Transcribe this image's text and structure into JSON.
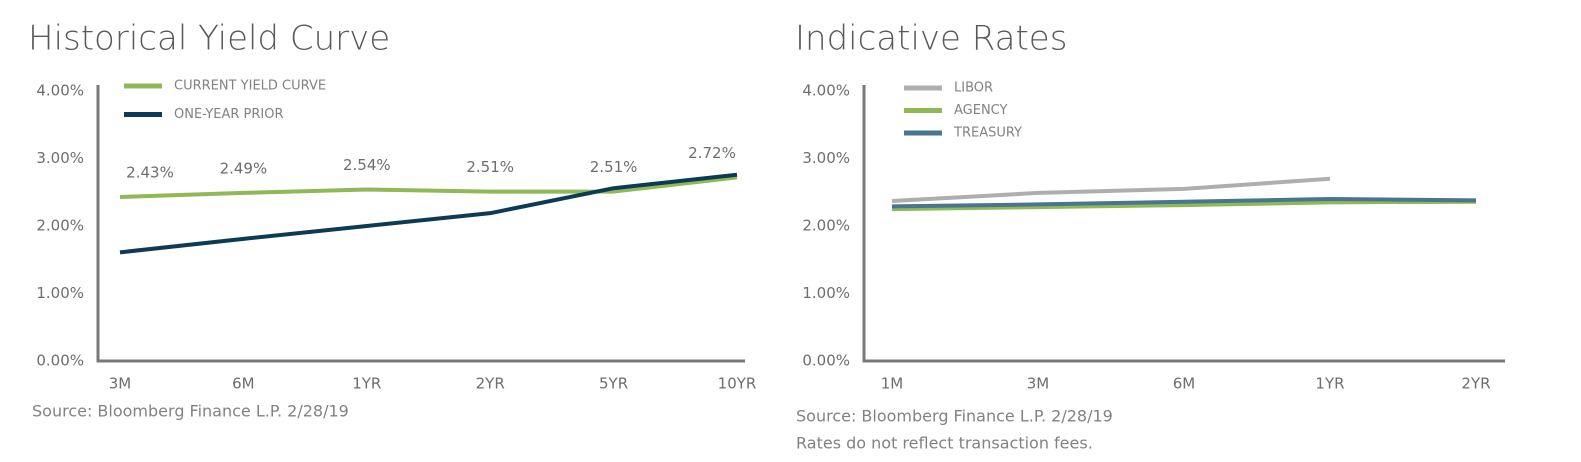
{
  "chart_data": [
    {
      "type": "line",
      "title": "Historical Yield Curve",
      "categories": [
        "3M",
        "6M",
        "1YR",
        "2YR",
        "5YR",
        "10YR"
      ],
      "series": [
        {
          "name": "CURRENT YIELD CURVE",
          "color": "#8fb954",
          "values": [
            2.43,
            2.49,
            2.54,
            2.51,
            2.51,
            2.72
          ],
          "value_labels": [
            "2.43%",
            "2.49%",
            "2.54%",
            "2.51%",
            "2.51%",
            "2.72%"
          ]
        },
        {
          "name": "ONE-YEAR PRIOR",
          "color": "#0d3a55",
          "values": [
            1.61,
            1.81,
            2.0,
            2.19,
            2.56,
            2.76
          ]
        }
      ],
      "ylim": [
        0,
        4
      ],
      "yticks": [
        {
          "value": 0,
          "label": "0.00%"
        },
        {
          "value": 1,
          "label": "1.00%"
        },
        {
          "value": 2,
          "label": "2.00%"
        },
        {
          "value": 3,
          "label": "3.00%"
        },
        {
          "value": 4,
          "label": "4.00%"
        }
      ],
      "grid": false,
      "legend": "top-left",
      "source": [
        "Source: Bloomberg Finance L.P. 2/28/19"
      ]
    },
    {
      "type": "line",
      "title": "Indicative Rates",
      "categories": [
        "1M",
        "3M",
        "6M",
        "1YR",
        "2YR"
      ],
      "series": [
        {
          "name": "LIBOR",
          "color": "#aeaeb0",
          "values": [
            2.37,
            2.49,
            2.55,
            2.7,
            null
          ]
        },
        {
          "name": "AGENCY",
          "color": "#8fb954",
          "values": [
            2.25,
            2.28,
            2.31,
            2.35,
            2.36
          ]
        },
        {
          "name": "TREASURY",
          "color": "#4a7590",
          "values": [
            2.29,
            2.32,
            2.36,
            2.4,
            2.38
          ]
        }
      ],
      "ylim": [
        0,
        4
      ],
      "yticks": [
        {
          "value": 0,
          "label": "0.00%"
        },
        {
          "value": 1,
          "label": "1.00%"
        },
        {
          "value": 2,
          "label": "2.00%"
        },
        {
          "value": 3,
          "label": "3.00%"
        },
        {
          "value": 4,
          "label": "4.00%"
        }
      ],
      "grid": false,
      "legend": "top-left",
      "source": [
        "Source: Bloomberg Finance L.P. 2/28/19",
        "Rates do not reflect transaction fees."
      ]
    }
  ]
}
